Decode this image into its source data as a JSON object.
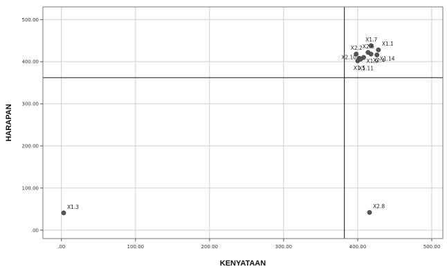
{
  "chart_data": {
    "type": "scatter",
    "title": "",
    "xlabel": "KENYATAAN",
    "ylabel": "HARAPAN",
    "xlim": [
      -25,
      515
    ],
    "ylim": [
      -20,
      530
    ],
    "x_ticks": [
      {
        "value": 0,
        "label": ".00"
      },
      {
        "value": 100,
        "label": "100.00"
      },
      {
        "value": 200,
        "label": "200.00"
      },
      {
        "value": 300,
        "label": "300.00"
      },
      {
        "value": 400,
        "label": "400.00"
      },
      {
        "value": 500,
        "label": "500.00"
      }
    ],
    "y_ticks": [
      {
        "value": 0,
        "label": ".00"
      },
      {
        "value": 100,
        "label": "100.00"
      },
      {
        "value": 200,
        "label": "200.00"
      },
      {
        "value": 300,
        "label": "300.00"
      },
      {
        "value": 400,
        "label": "400.00"
      },
      {
        "value": 500,
        "label": "500.00"
      }
    ],
    "grid": true,
    "reference_lines": {
      "x": 382,
      "y": 362
    },
    "marker_color": "#555555",
    "points": [
      {
        "label": "X1.3",
        "x": 3,
        "y": 41,
        "anchor": "ur"
      },
      {
        "label": "X2.8",
        "x": 416,
        "y": 42,
        "anchor": "ur"
      },
      {
        "label": "X1.7",
        "x": 418,
        "y": 438,
        "anchor": "ul"
      },
      {
        "label": "X1.1",
        "x": 428,
        "y": 428,
        "anchor": "ur"
      },
      {
        "label": "X2.2",
        "x": 398,
        "y": 418,
        "anchor": "ul"
      },
      {
        "label": "X2.6",
        "x": 414,
        "y": 422,
        "anchor": "ul"
      },
      {
        "label": "X2.10",
        "x": 402,
        "y": 408,
        "anchor": "l"
      },
      {
        "label": "X1.9",
        "x": 408,
        "y": 410,
        "anchor": "br"
      },
      {
        "label": "X1.14",
        "x": 426,
        "y": 416,
        "anchor": "br"
      },
      {
        "label": "X1.5",
        "x": 400,
        "y": 402,
        "anchor": "bl"
      },
      {
        "label": "X2.4",
        "x": 418,
        "y": 418,
        "anchor": "br2"
      },
      {
        "label": "X1.11",
        "x": 404,
        "y": 406,
        "anchor": "b"
      }
    ]
  }
}
